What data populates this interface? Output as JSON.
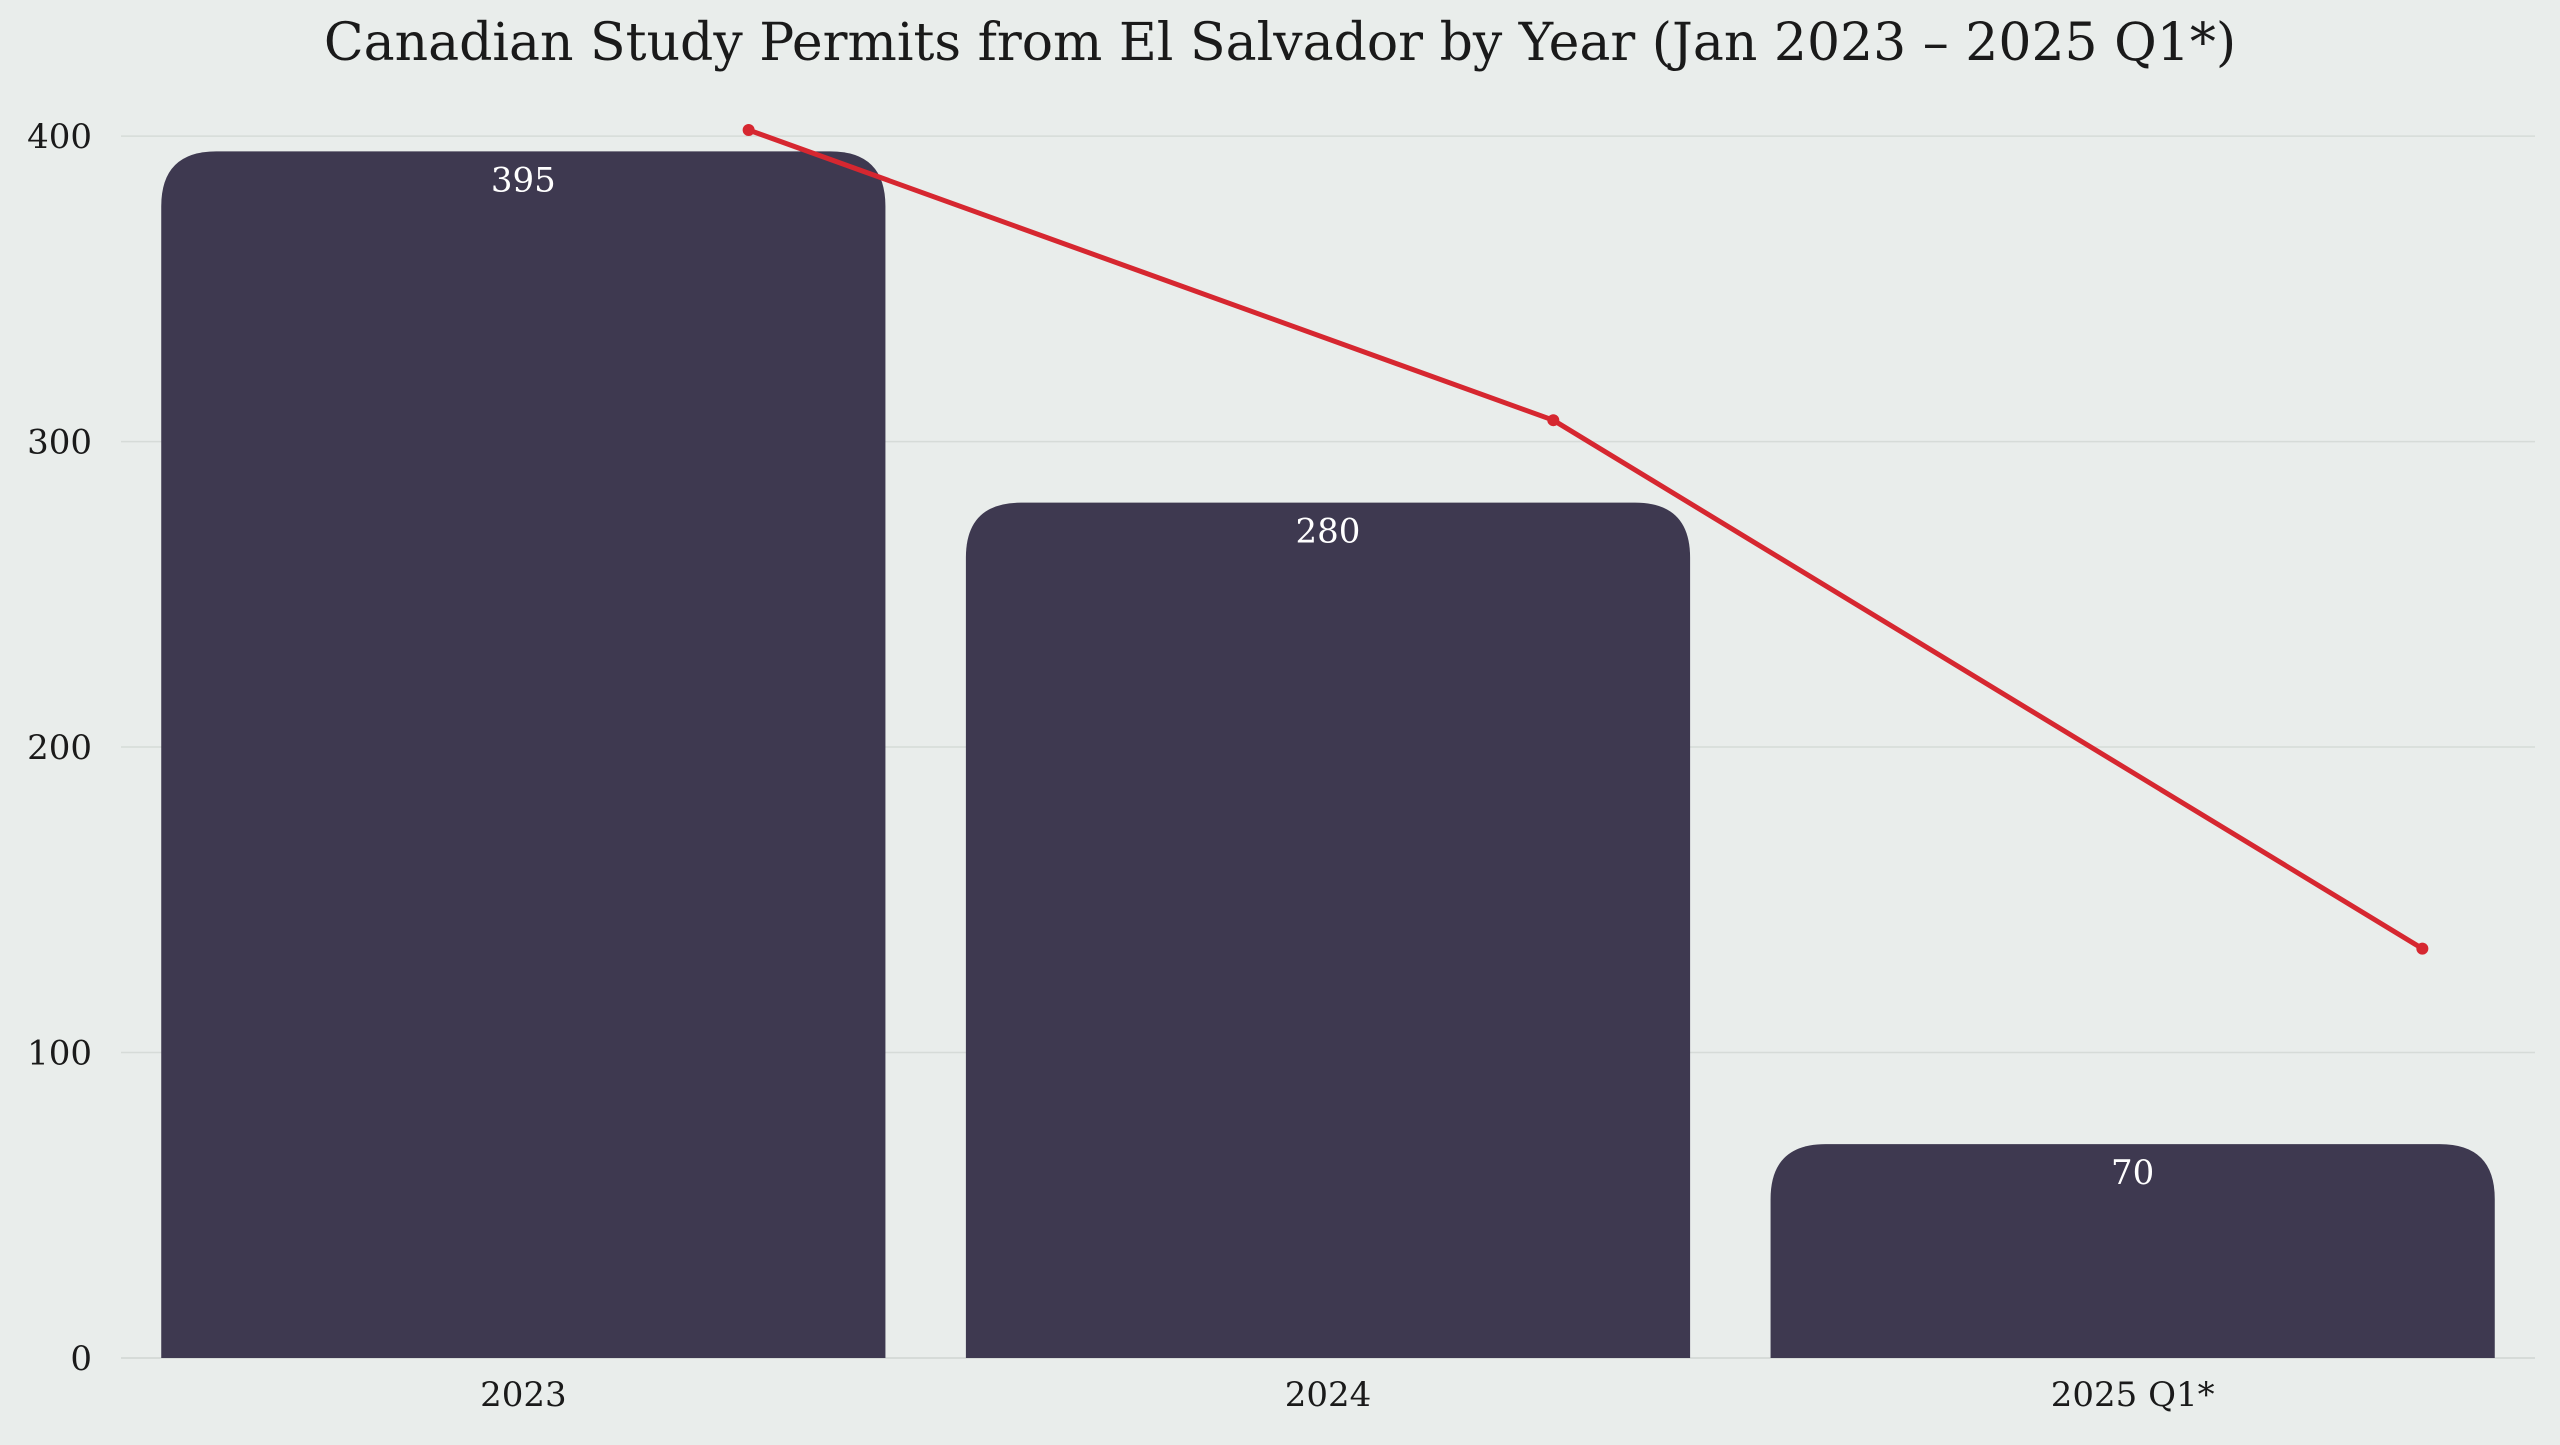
{
  "chart_data": {
    "type": "bar",
    "title": "Canadian Study Permits from El Salvador by Year (Jan 2023 – 2025 Q1*)",
    "xlabel": "",
    "ylabel": "",
    "categories": [
      "2023",
      "2024",
      "2025 Q1*"
    ],
    "values": [
      395,
      280,
      70
    ],
    "data_labels": [
      "395",
      "280",
      "70"
    ],
    "ylim": [
      0,
      420
    ],
    "yticks": [
      0,
      100,
      200,
      300,
      400
    ],
    "ytick_labels": [
      "0",
      "100",
      "200",
      "300",
      "400"
    ],
    "grid": "horizontal",
    "legend": "none",
    "line_overlay": {
      "type": "line",
      "values": [
        402,
        307,
        134
      ],
      "color": "#d62730"
    },
    "colors": {
      "bar": "#3e3950",
      "line": "#d62730",
      "background": "#e9edeb"
    }
  }
}
